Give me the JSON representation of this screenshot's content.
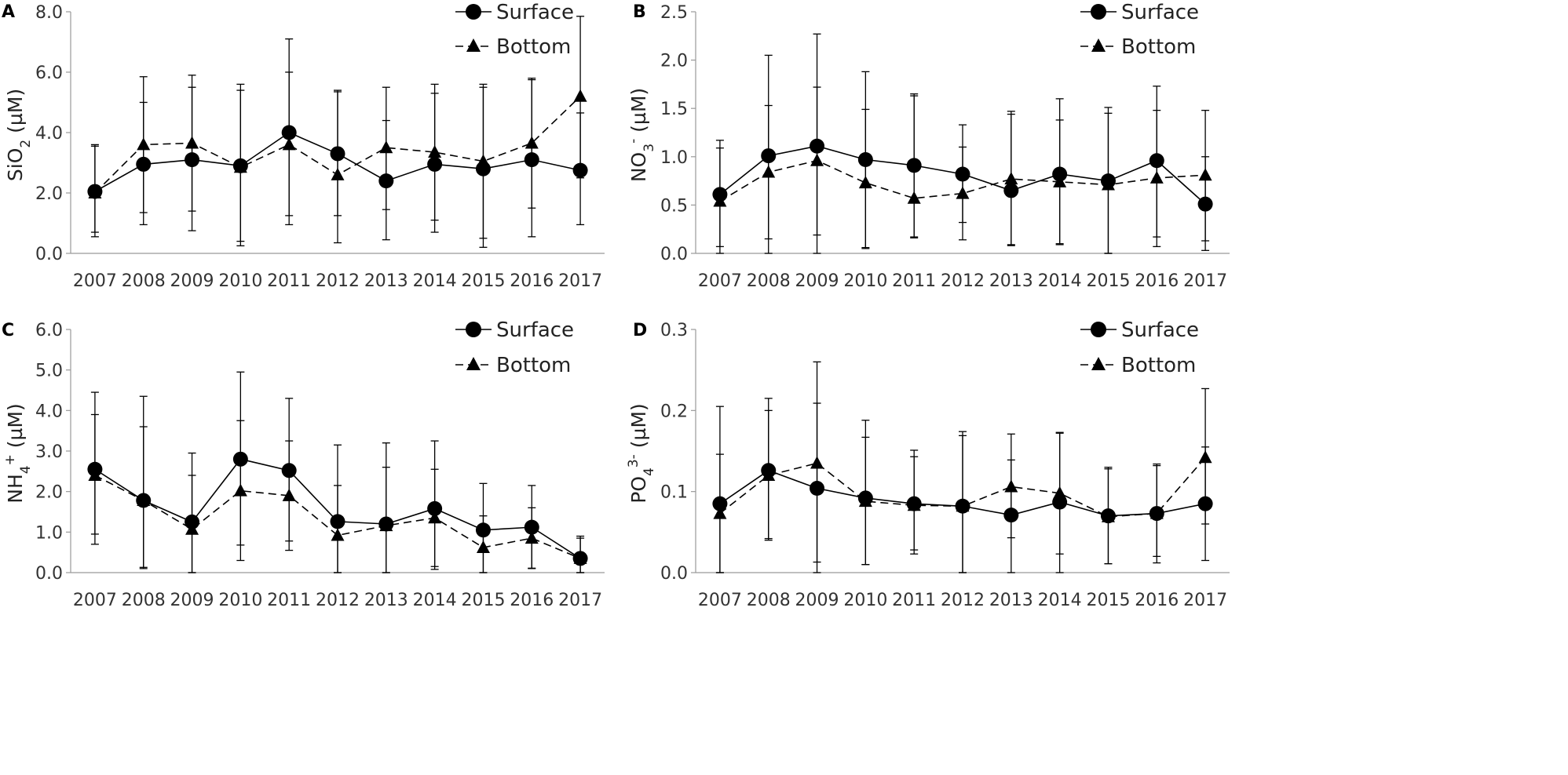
{
  "chart_data": [
    {
      "panel": "A",
      "type": "line",
      "categories": [
        "2007",
        "2008",
        "2009",
        "2010",
        "2011",
        "2012",
        "2013",
        "2014",
        "2015",
        "2016",
        "2017"
      ],
      "ylabel": {
        "main": "SiO",
        "sub": "2",
        "sup": "",
        "unit": " (µM)"
      },
      "ylim": [
        0,
        8
      ],
      "yticks": [
        0,
        2,
        4,
        6,
        8
      ],
      "ytick_labels": [
        "0.0",
        "2.0",
        "4.0",
        "6.0",
        "8.0"
      ],
      "series": [
        {
          "name": "Surface",
          "marker": "circle",
          "dashed": false,
          "values": [
            2.05,
            2.95,
            3.1,
            2.9,
            4.0,
            3.3,
            2.4,
            2.95,
            2.8,
            3.1,
            2.75
          ],
          "err_low": [
            0.55,
            0.95,
            0.75,
            0.4,
            1.25,
            0.35,
            0.45,
            0.7,
            0.2,
            0.55,
            0.95
          ],
          "err_high": [
            3.55,
            5.0,
            5.5,
            5.4,
            7.1,
            5.4,
            5.5,
            5.6,
            5.5,
            5.75,
            4.65
          ]
        },
        {
          "name": "Bottom",
          "marker": "triangle",
          "dashed": true,
          "values": [
            2.0,
            3.6,
            3.65,
            2.85,
            3.6,
            2.6,
            3.5,
            3.35,
            3.05,
            3.65,
            5.2
          ],
          "err_low": [
            0.7,
            1.35,
            1.4,
            0.25,
            0.95,
            1.25,
            1.45,
            1.1,
            0.5,
            1.5,
            2.5
          ],
          "err_high": [
            3.6,
            5.85,
            5.9,
            5.6,
            6.0,
            5.35,
            4.4,
            5.3,
            5.6,
            5.8,
            7.85
          ]
        }
      ]
    },
    {
      "panel": "B",
      "type": "line",
      "categories": [
        "2007",
        "2008",
        "2009",
        "2010",
        "2011",
        "2012",
        "2013",
        "2014",
        "2015",
        "2016",
        "2017"
      ],
      "ylabel": {
        "main": "NO",
        "sub": "3",
        "sup": "-",
        "unit": " (µM)"
      },
      "ylim": [
        0,
        2.5
      ],
      "yticks": [
        0,
        0.5,
        1.0,
        1.5,
        2.0,
        2.5
      ],
      "ytick_labels": [
        "0.0",
        "0.5",
        "1.0",
        "1.5",
        "2.0",
        "2.5"
      ],
      "series": [
        {
          "name": "Surface",
          "marker": "circle",
          "dashed": false,
          "values": [
            0.61,
            1.01,
            1.11,
            0.97,
            0.91,
            0.82,
            0.65,
            0.82,
            0.75,
            0.96,
            0.51
          ],
          "err_low": [
            0.07,
            0.0,
            0.0,
            0.06,
            0.17,
            0.32,
            0.08,
            0.09,
            0.0,
            0.17,
            0.03
          ],
          "err_high": [
            1.17,
            2.05,
            2.27,
            1.88,
            1.65,
            1.33,
            1.47,
            1.6,
            1.51,
            1.73,
            1.0
          ]
        },
        {
          "name": "Bottom",
          "marker": "triangle",
          "dashed": true,
          "values": [
            0.54,
            0.84,
            0.96,
            0.73,
            0.57,
            0.62,
            0.77,
            0.74,
            0.71,
            0.78,
            0.81
          ],
          "err_low": [
            0.0,
            0.15,
            0.19,
            0.05,
            0.16,
            0.14,
            0.09,
            0.1,
            0.0,
            0.07,
            0.13
          ],
          "err_high": [
            1.09,
            1.53,
            1.72,
            1.49,
            1.63,
            1.1,
            1.44,
            1.38,
            1.45,
            1.48,
            1.48
          ]
        }
      ]
    },
    {
      "panel": "C",
      "type": "line",
      "categories": [
        "2007",
        "2008",
        "2009",
        "2010",
        "2011",
        "2012",
        "2013",
        "2014",
        "2015",
        "2016",
        "2017"
      ],
      "ylabel": {
        "main": "NH",
        "sub": "4",
        "sup": "+",
        "unit": " (µM)"
      },
      "ylim": [
        0,
        6
      ],
      "yticks": [
        0,
        1,
        2,
        3,
        4,
        5,
        6
      ],
      "ytick_labels": [
        "0.0",
        "1.0",
        "2.0",
        "3.0",
        "4.0",
        "5.0",
        "6.0"
      ],
      "series": [
        {
          "name": "Surface",
          "marker": "circle",
          "dashed": false,
          "values": [
            2.55,
            1.78,
            1.25,
            2.8,
            2.52,
            1.26,
            1.2,
            1.58,
            1.05,
            1.12,
            0.35
          ],
          "err_low": [
            0.7,
            0.13,
            0.0,
            0.68,
            0.78,
            0.0,
            0.0,
            0.08,
            0.0,
            0.11,
            0.0
          ],
          "err_high": [
            4.45,
            4.35,
            2.95,
            4.95,
            4.3,
            3.15,
            3.2,
            3.25,
            2.2,
            2.15,
            0.85
          ]
        },
        {
          "name": "Bottom",
          "marker": "triangle",
          "dashed": true,
          "values": [
            2.4,
            1.78,
            1.07,
            2.02,
            1.9,
            0.92,
            1.16,
            1.35,
            0.62,
            0.85,
            0.35
          ],
          "err_low": [
            0.95,
            0.1,
            0.0,
            0.3,
            0.55,
            0.0,
            0.0,
            0.15,
            0.0,
            0.1,
            0.0
          ],
          "err_high": [
            3.9,
            3.6,
            2.4,
            3.75,
            3.25,
            2.15,
            2.6,
            2.55,
            1.4,
            1.6,
            0.9
          ]
        }
      ]
    },
    {
      "panel": "D",
      "type": "line",
      "categories": [
        "2007",
        "2008",
        "2009",
        "2010",
        "2011",
        "2012",
        "2013",
        "2014",
        "2015",
        "2016",
        "2017"
      ],
      "ylabel": {
        "main": "PO",
        "sub": "4",
        "sup": "3-",
        "unit": " (µM)"
      },
      "ylim": [
        0,
        0.3
      ],
      "yticks": [
        0,
        0.1,
        0.2,
        0.3
      ],
      "ytick_labels": [
        "0.0",
        "0.1",
        "0.2",
        "0.3"
      ],
      "series": [
        {
          "name": "Surface",
          "marker": "circle",
          "dashed": false,
          "values": [
            0.085,
            0.126,
            0.104,
            0.092,
            0.085,
            0.082,
            0.071,
            0.087,
            0.07,
            0.073,
            0.085
          ],
          "err_low": [
            0.0,
            0.04,
            0.0,
            0.01,
            0.028,
            0.0,
            0.0,
            0.0,
            0.011,
            0.02,
            0.015
          ],
          "err_high": [
            0.205,
            0.215,
            0.209,
            0.188,
            0.151,
            0.174,
            0.139,
            0.173,
            0.13,
            0.134,
            0.155
          ]
        },
        {
          "name": "Bottom",
          "marker": "triangle",
          "dashed": true,
          "values": [
            0.073,
            0.12,
            0.135,
            0.088,
            0.083,
            0.082,
            0.106,
            0.098,
            0.069,
            0.073,
            0.142
          ],
          "err_low": [
            0.0,
            0.042,
            0.013,
            0.01,
            0.023,
            0.0,
            0.043,
            0.023,
            0.011,
            0.012,
            0.06
          ],
          "err_high": [
            0.146,
            0.2,
            0.26,
            0.167,
            0.143,
            0.169,
            0.171,
            0.172,
            0.128,
            0.132,
            0.227
          ]
        }
      ]
    }
  ]
}
